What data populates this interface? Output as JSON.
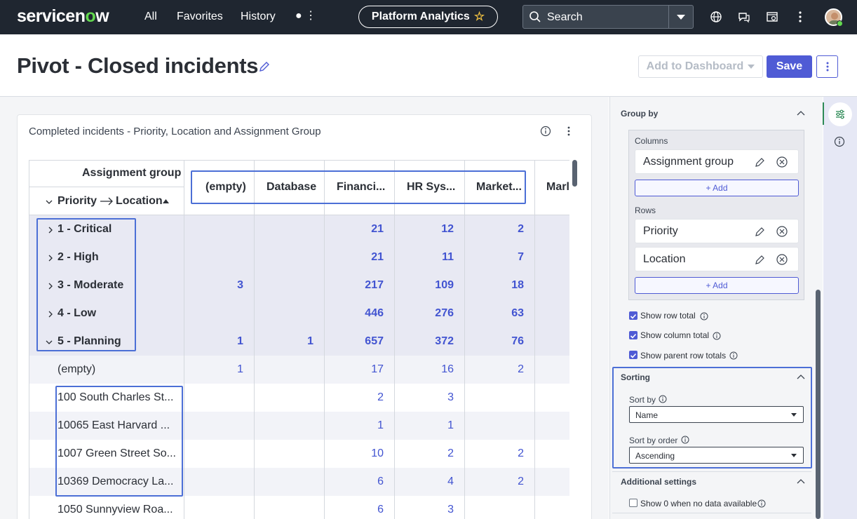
{
  "nav": {
    "logo_pre": "servicen",
    "logo_o": "o",
    "logo_post": "w",
    "links": [
      "All",
      "Favorites",
      "History"
    ],
    "more_label": "● ⋮",
    "platform_pill": "Platform Analytics",
    "search_label": "Search"
  },
  "header": {
    "title": "Pivot - Closed incidents",
    "add_to_dashboard": "Add to Dashboard",
    "save": "Save"
  },
  "card": {
    "title": "Completed incidents - Priority, Location and Assignment Group"
  },
  "pivot": {
    "column_group_label": "Assignment group",
    "row_header": [
      "Priority",
      "Location"
    ],
    "columns": [
      "(empty)",
      "Database",
      "Financi...",
      "HR Sys...",
      "Market...",
      "Marl"
    ],
    "priority_rows": [
      {
        "label": "1 - Critical",
        "cells": [
          "",
          "",
          "21",
          "12",
          "2"
        ]
      },
      {
        "label": "2 - High",
        "cells": [
          "",
          "",
          "21",
          "11",
          "7"
        ]
      },
      {
        "label": "3 - Moderate",
        "cells": [
          "3",
          "",
          "217",
          "109",
          "18"
        ]
      },
      {
        "label": "4 - Low",
        "cells": [
          "",
          "",
          "446",
          "276",
          "63"
        ]
      },
      {
        "label": "5 - Planning",
        "cells": [
          "1",
          "1",
          "657",
          "372",
          "76"
        ]
      }
    ],
    "location_rows": [
      {
        "label": "(empty)",
        "cells": [
          "1",
          "",
          "17",
          "16",
          "2"
        ]
      },
      {
        "label": "100 South Charles St...",
        "cells": [
          "",
          "",
          "2",
          "3",
          ""
        ]
      },
      {
        "label": "10065 East Harvard ...",
        "cells": [
          "",
          "",
          "1",
          "1",
          ""
        ]
      },
      {
        "label": "1007 Green Street So...",
        "cells": [
          "",
          "",
          "10",
          "2",
          "2"
        ]
      },
      {
        "label": "10369 Democracy La...",
        "cells": [
          "",
          "",
          "6",
          "4",
          "2"
        ]
      },
      {
        "label": "1050 Sunnyview Roa...",
        "cells": [
          "",
          "",
          "6",
          "3",
          ""
        ]
      }
    ]
  },
  "panel": {
    "group_by": "Group by",
    "columns_label": "Columns",
    "columns_items": [
      "Assignment group"
    ],
    "rows_label": "Rows",
    "rows_items": [
      "Priority",
      "Location"
    ],
    "add_label": "+ Add",
    "checkboxes": [
      {
        "label": "Show row total",
        "checked": true
      },
      {
        "label": "Show column total",
        "checked": true
      },
      {
        "label": "Show parent row totals",
        "checked": true
      }
    ],
    "sorting": "Sorting",
    "sort_by_label": "Sort by",
    "sort_by_value": "Name",
    "sort_order_label": "Sort by order",
    "sort_order_value": "Ascending",
    "additional_settings": "Additional settings",
    "show_zero": {
      "label": "Show 0 when no data available",
      "checked": false
    }
  },
  "colors": {
    "accent": "#4f5bd5",
    "nav_bg": "#1f2630",
    "link_value": "#4254d1",
    "highlight": "#4c6fd6"
  }
}
